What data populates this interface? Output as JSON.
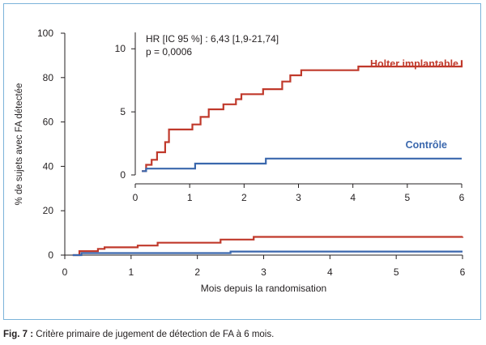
{
  "colors": {
    "holter": "#c0392b",
    "control": "#3a67ad",
    "axis": "#231f20",
    "frame": "#7bb3d9"
  },
  "caption": {
    "label": "Fig. 7 :",
    "text": " Critère primaire de jugement de détection de FA à 6 mois."
  },
  "chart_data": [
    {
      "type": "line",
      "step": true,
      "role": "main",
      "ylabel": "% de sujets avec FA détectée",
      "xlabel": "Mois depuis la randomisation",
      "xlim": [
        0,
        6
      ],
      "ylim": [
        0,
        100
      ],
      "xticks": [
        0,
        1,
        2,
        3,
        4,
        5,
        6
      ],
      "yticks": [
        0,
        20,
        40,
        60,
        80,
        100
      ],
      "series": [
        {
          "key": "holter",
          "x": [
            0.12,
            0.22,
            0.5,
            0.6,
            1.1,
            1.4,
            2.35,
            2.85,
            6.0
          ],
          "y": [
            0,
            1.8,
            2.8,
            3.5,
            4.3,
            5.6,
            7.0,
            8.2,
            8.3
          ]
        },
        {
          "key": "control",
          "x": [
            0.12,
            0.25,
            2.5,
            6.0
          ],
          "y": [
            0,
            0.9,
            1.6,
            1.6
          ]
        }
      ]
    },
    {
      "type": "line",
      "step": true,
      "role": "inset",
      "annotations": [
        "HR [IC 95 %] : 6,43 [1,9-21,74]",
        "p = 0,0006"
      ],
      "xlim": [
        0,
        6
      ],
      "ylim": [
        0,
        10
      ],
      "xticks": [
        0,
        1,
        2,
        3,
        4,
        5,
        6
      ],
      "yticks": [
        0,
        5,
        10
      ],
      "series": [
        {
          "name": "Holter implantable",
          "key": "holter",
          "x": [
            0.12,
            0.2,
            0.3,
            0.4,
            0.55,
            0.62,
            1.05,
            1.2,
            1.35,
            1.62,
            1.85,
            1.95,
            2.35,
            2.7,
            2.85,
            3.05,
            4.1,
            6.0
          ],
          "y": [
            0.3,
            0.8,
            1.2,
            1.8,
            2.6,
            3.6,
            4.0,
            4.6,
            5.2,
            5.6,
            6.0,
            6.4,
            6.8,
            7.4,
            7.9,
            8.3,
            8.6,
            9.1
          ]
        },
        {
          "name": "Contrôle",
          "key": "control",
          "x": [
            0.12,
            0.2,
            1.1,
            2.4,
            6.0
          ],
          "y": [
            0.3,
            0.5,
            0.9,
            1.3,
            1.3
          ]
        }
      ]
    }
  ]
}
